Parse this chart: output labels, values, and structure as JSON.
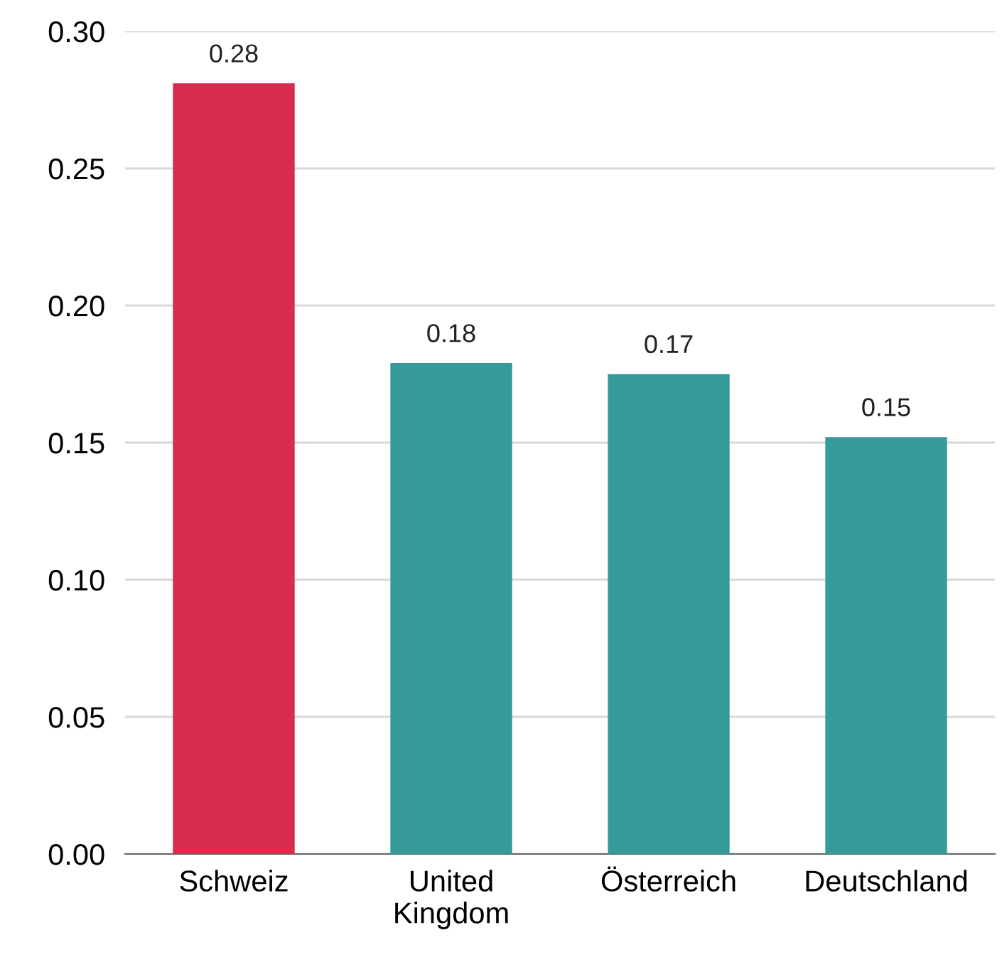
{
  "chart_data": {
    "type": "bar",
    "categories": [
      "Schweiz",
      "United Kingdom",
      "Österreich",
      "Deutschland"
    ],
    "values": [
      0.281,
      0.179,
      0.175,
      0.152
    ],
    "colors": [
      "#d92b4b",
      "#36999a",
      "#36999a",
      "#36999a"
    ],
    "value_labels": [
      "0.28",
      "0.18",
      "0.17",
      "0.15"
    ],
    "ylim": [
      0,
      0.3
    ],
    "yticks": [
      {
        "value": 0,
        "label": "0.00"
      },
      {
        "value": 0.05,
        "label": "0.05"
      },
      {
        "value": 0.1,
        "label": "0.10"
      },
      {
        "value": 0.15,
        "label": "0.15"
      },
      {
        "value": 0.2,
        "label": "0.20"
      },
      {
        "value": 0.25,
        "label": "0.25"
      },
      {
        "value": 0.3,
        "label": "0.30"
      }
    ],
    "grid": "y",
    "legend": false
  }
}
